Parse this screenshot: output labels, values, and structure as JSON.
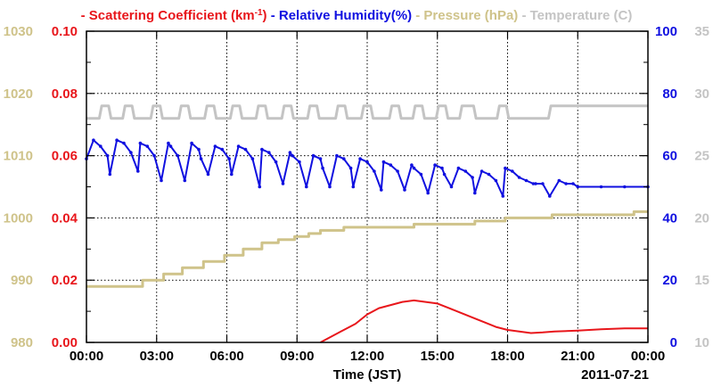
{
  "chart_data": {
    "type": "line",
    "xlabel": "Time (JST)",
    "date_label": "2011-07-21",
    "x_ticks": [
      "00:00",
      "03:00",
      "06:00",
      "09:00",
      "12:00",
      "15:00",
      "18:00",
      "21:00",
      "00:00"
    ],
    "x_range_hours": [
      0,
      24
    ],
    "grid": true,
    "legend_position": "top",
    "legend": [
      {
        "dash": "-",
        "name": "Scattering Coefficient (km",
        "sup": "-1",
        "suffix": ")",
        "color": "#e8161b"
      },
      {
        "dash": "-",
        "name": "Relative Humidity(%)",
        "sup": "",
        "suffix": "",
        "color": "#1010e0"
      },
      {
        "dash": "-",
        "name": "Pressure (hPa)",
        "sup": "",
        "suffix": "",
        "color": "#cfc38a"
      },
      {
        "dash": "-",
        "name": "Temperature (",
        "sup": "",
        "suffix": "C)",
        "color": "#c4c4c4"
      }
    ],
    "axes": {
      "pressure": {
        "ticks": [
          "1030",
          "1020",
          "1010",
          "1000",
          "990",
          "980"
        ],
        "range": [
          980,
          1030
        ],
        "color": "#cfc38a"
      },
      "scattering": {
        "ticks": [
          "0.10",
          "0.08",
          "0.06",
          "0.04",
          "0.02",
          "0.00"
        ],
        "range": [
          0,
          0.1
        ],
        "color": "#e8161b"
      },
      "humidity": {
        "ticks": [
          "100",
          "80",
          "60",
          "40",
          "20",
          "0"
        ],
        "range": [
          0,
          100
        ],
        "color": "#1010e0"
      },
      "temperature": {
        "ticks": [
          "35",
          "30",
          "25",
          "20",
          "15",
          "10"
        ],
        "range": [
          10,
          35
        ],
        "color": "#c4c4c4"
      }
    },
    "series": [
      {
        "name": "Scattering Coefficient",
        "axis": "scattering",
        "color": "#e8161b",
        "x": [
          10.0,
          10.5,
          11.0,
          11.5,
          12.0,
          12.5,
          13.0,
          13.5,
          14.0,
          14.5,
          15.0,
          15.5,
          16.0,
          16.5,
          17.0,
          17.5,
          18.0,
          18.5,
          19.0,
          19.5,
          20.0,
          21.0,
          22.0,
          23.0,
          24.0
        ],
        "y": [
          0.0,
          0.002,
          0.004,
          0.006,
          0.009,
          0.011,
          0.012,
          0.013,
          0.0135,
          0.013,
          0.0125,
          0.011,
          0.0095,
          0.008,
          0.0065,
          0.005,
          0.004,
          0.0035,
          0.003,
          0.0032,
          0.0035,
          0.0038,
          0.0042,
          0.0045,
          0.0045
        ]
      },
      {
        "name": "Relative Humidity",
        "axis": "humidity",
        "color": "#1010e0",
        "x": [
          0.0,
          0.3,
          0.6,
          0.9,
          1.0,
          1.3,
          1.6,
          1.9,
          2.2,
          2.3,
          2.6,
          2.9,
          3.2,
          3.5,
          3.6,
          3.9,
          4.2,
          4.5,
          4.8,
          4.9,
          5.2,
          5.5,
          5.8,
          6.1,
          6.2,
          6.5,
          6.8,
          7.1,
          7.4,
          7.5,
          7.8,
          8.1,
          8.4,
          8.7,
          8.8,
          9.1,
          9.4,
          9.7,
          10.0,
          10.1,
          10.4,
          10.7,
          11.0,
          11.3,
          11.4,
          11.7,
          12.0,
          12.3,
          12.6,
          12.7,
          13.0,
          13.3,
          13.6,
          13.9,
          14.0,
          14.3,
          14.6,
          14.9,
          15.2,
          15.3,
          15.6,
          15.9,
          16.2,
          16.5,
          16.6,
          16.9,
          17.2,
          17.5,
          17.8,
          17.9,
          18.2,
          18.5,
          18.8,
          19.1,
          19.2,
          19.5,
          19.8,
          20.2,
          20.5,
          20.8,
          21.0,
          22.0,
          23.0,
          24.0
        ],
        "y": [
          59,
          65,
          63,
          60,
          54,
          65,
          64,
          61,
          55,
          64,
          63,
          60,
          52,
          64,
          63,
          60,
          52,
          64,
          62,
          59,
          54,
          63,
          62,
          59,
          54,
          63,
          62,
          59,
          50,
          62,
          61,
          58,
          51,
          61,
          60,
          58,
          50,
          60,
          59,
          56,
          50,
          60,
          59,
          56,
          50,
          59,
          58,
          55,
          49,
          58,
          57,
          55,
          49,
          57,
          56,
          54,
          48,
          57,
          56,
          54,
          50,
          56,
          55,
          53,
          48,
          55,
          54,
          52,
          47,
          56,
          55,
          53,
          52,
          51,
          51,
          51,
          47,
          52,
          51,
          51,
          50,
          50,
          50,
          50
        ]
      },
      {
        "name": "Pressure",
        "axis": "pressure",
        "color": "#cfc38a",
        "x": [
          0.0,
          2.4,
          2.4,
          3.3,
          3.3,
          4.1,
          4.1,
          5.0,
          5.0,
          5.9,
          5.9,
          6.7,
          6.7,
          7.5,
          7.5,
          8.2,
          8.2,
          8.9,
          8.9,
          9.5,
          9.5,
          10.0,
          10.0,
          11.0,
          11.0,
          14.0,
          14.0,
          16.6,
          16.6,
          17.9,
          17.9,
          19.9,
          19.9,
          23.4,
          23.4,
          24.0
        ],
        "y": [
          989.0,
          989.0,
          990.0,
          990.0,
          991.0,
          991.0,
          992.0,
          992.0,
          993.0,
          993.0,
          994.0,
          994.0,
          995.0,
          995.0,
          996.0,
          996.0,
          996.5,
          996.5,
          997.0,
          997.0,
          997.5,
          997.5,
          998.0,
          998.0,
          998.5,
          998.5,
          999.0,
          999.0,
          999.5,
          999.5,
          1000.0,
          1000.0,
          1000.5,
          1000.5,
          1001.0,
          1001.0
        ],
        "step": true
      },
      {
        "name": "Temperature",
        "axis": "temperature",
        "color": "#c4c4c4",
        "x": [
          0.0,
          0.55,
          0.65,
          0.95,
          1.05,
          1.55,
          1.65,
          1.95,
          2.05,
          2.75,
          2.85,
          3.15,
          3.25,
          3.95,
          4.05,
          4.35,
          4.45,
          5.05,
          5.15,
          5.45,
          5.55,
          6.15,
          6.25,
          6.55,
          6.65,
          7.25,
          7.35,
          7.65,
          7.75,
          8.35,
          8.45,
          8.75,
          8.85,
          9.45,
          9.55,
          9.85,
          9.95,
          10.65,
          10.75,
          11.05,
          11.15,
          11.75,
          11.85,
          12.15,
          12.25,
          12.95,
          13.05,
          13.35,
          13.45,
          13.95,
          14.05,
          14.35,
          14.45,
          14.95,
          15.05,
          15.35,
          15.45,
          15.95,
          16.05,
          16.55,
          16.65,
          17.55,
          17.65,
          17.95,
          18.05,
          19.75,
          19.85,
          24.0
        ],
        "y": [
          28.0,
          28.0,
          29.0,
          29.0,
          28.0,
          28.0,
          29.0,
          29.0,
          28.0,
          28.0,
          29.0,
          29.0,
          28.0,
          28.0,
          29.0,
          29.0,
          28.0,
          28.0,
          29.0,
          29.0,
          28.0,
          28.0,
          29.0,
          29.0,
          28.0,
          28.0,
          29.0,
          29.0,
          28.0,
          28.0,
          29.0,
          29.0,
          28.0,
          28.0,
          29.0,
          29.0,
          28.0,
          28.0,
          29.0,
          29.0,
          28.0,
          28.0,
          29.0,
          29.0,
          28.0,
          28.0,
          29.0,
          29.0,
          28.0,
          28.0,
          29.0,
          29.0,
          28.0,
          28.0,
          29.0,
          29.0,
          28.0,
          28.0,
          29.0,
          29.0,
          28.0,
          28.0,
          29.0,
          29.0,
          28.0,
          28.0,
          29.0,
          29.0
        ]
      }
    ]
  }
}
